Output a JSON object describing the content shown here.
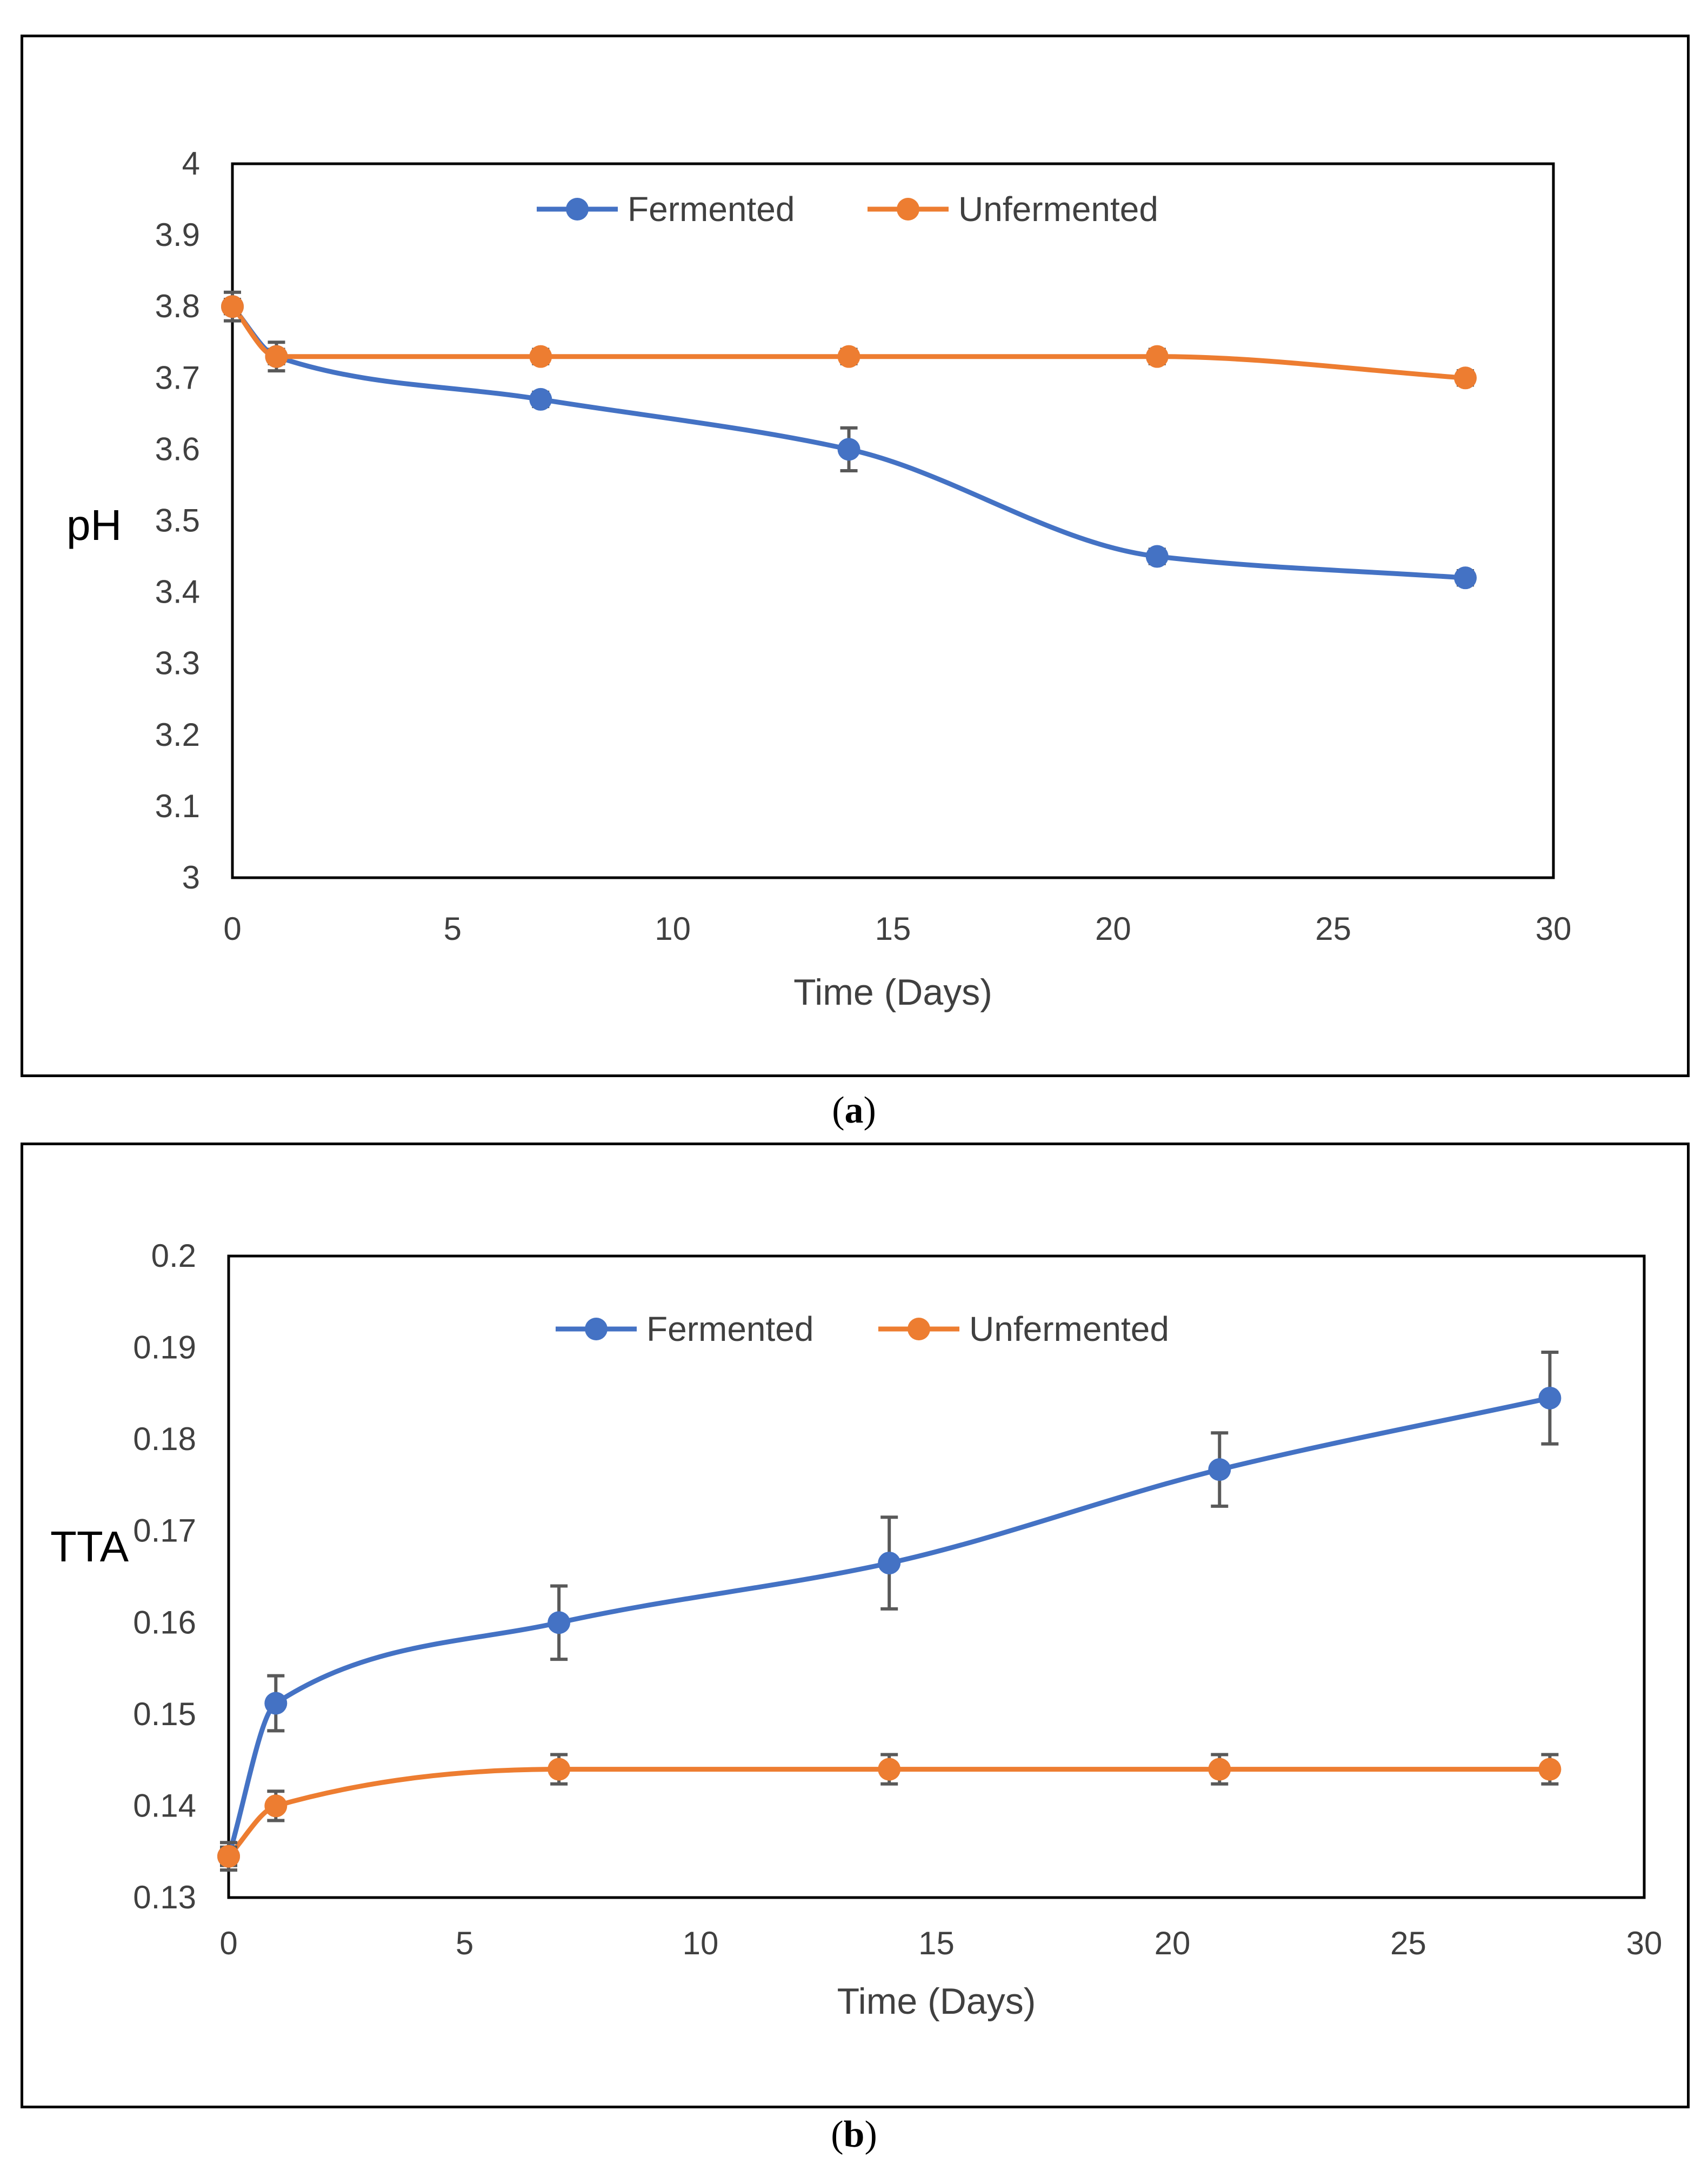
{
  "chart_data": [
    {
      "id": "a",
      "type": "line",
      "caption_letter": "a",
      "xlabel": "Time (Days)",
      "ylabel": "pH",
      "xlim": [
        0,
        30
      ],
      "ylim": [
        3,
        4
      ],
      "xticks": [
        0,
        5,
        10,
        15,
        20,
        25,
        30
      ],
      "yticks": [
        3,
        3.1,
        3.2,
        3.3,
        3.4,
        3.5,
        3.6,
        3.7,
        3.8,
        3.9,
        4
      ],
      "grid": false,
      "legend_position": "top-center",
      "x": [
        0,
        1,
        7,
        14,
        21,
        28
      ],
      "series": [
        {
          "name": "Fermented",
          "color": "#4472C4",
          "values": [
            3.8,
            3.73,
            3.67,
            3.6,
            3.45,
            3.42
          ],
          "errors": [
            0.02,
            0.02,
            0.01,
            0.03,
            0.01,
            0.01
          ]
        },
        {
          "name": "Unfermented",
          "color": "#ED7D31",
          "values": [
            3.8,
            3.73,
            3.73,
            3.73,
            3.73,
            3.7
          ],
          "errors": [
            0.01,
            0.01,
            0.01,
            0.01,
            0.01,
            0.01
          ]
        }
      ]
    },
    {
      "id": "b",
      "type": "line",
      "caption_letter": "b",
      "xlabel": "Time (Days)",
      "ylabel": "TTA",
      "xlim": [
        0,
        30
      ],
      "ylim": [
        0.13,
        0.2
      ],
      "xticks": [
        0,
        5,
        10,
        15,
        20,
        25,
        30
      ],
      "yticks": [
        0.13,
        0.14,
        0.15,
        0.16,
        0.17,
        0.18,
        0.19,
        0.2
      ],
      "grid": false,
      "legend_position": "top-center",
      "x": [
        0,
        1,
        7,
        14,
        21,
        28
      ],
      "series": [
        {
          "name": "Fermented",
          "color": "#4472C4",
          "values": [
            0.1345,
            0.1512,
            0.16,
            0.1665,
            0.1767,
            0.1845
          ],
          "errors": [
            0.0015,
            0.003,
            0.004,
            0.005,
            0.004,
            0.005
          ]
        },
        {
          "name": "Unfermented",
          "color": "#ED7D31",
          "values": [
            0.1345,
            0.14,
            0.144,
            0.144,
            0.144,
            0.144
          ],
          "errors": [
            0.001,
            0.0016,
            0.0016,
            0.0016,
            0.0016,
            0.0016
          ]
        }
      ]
    }
  ]
}
